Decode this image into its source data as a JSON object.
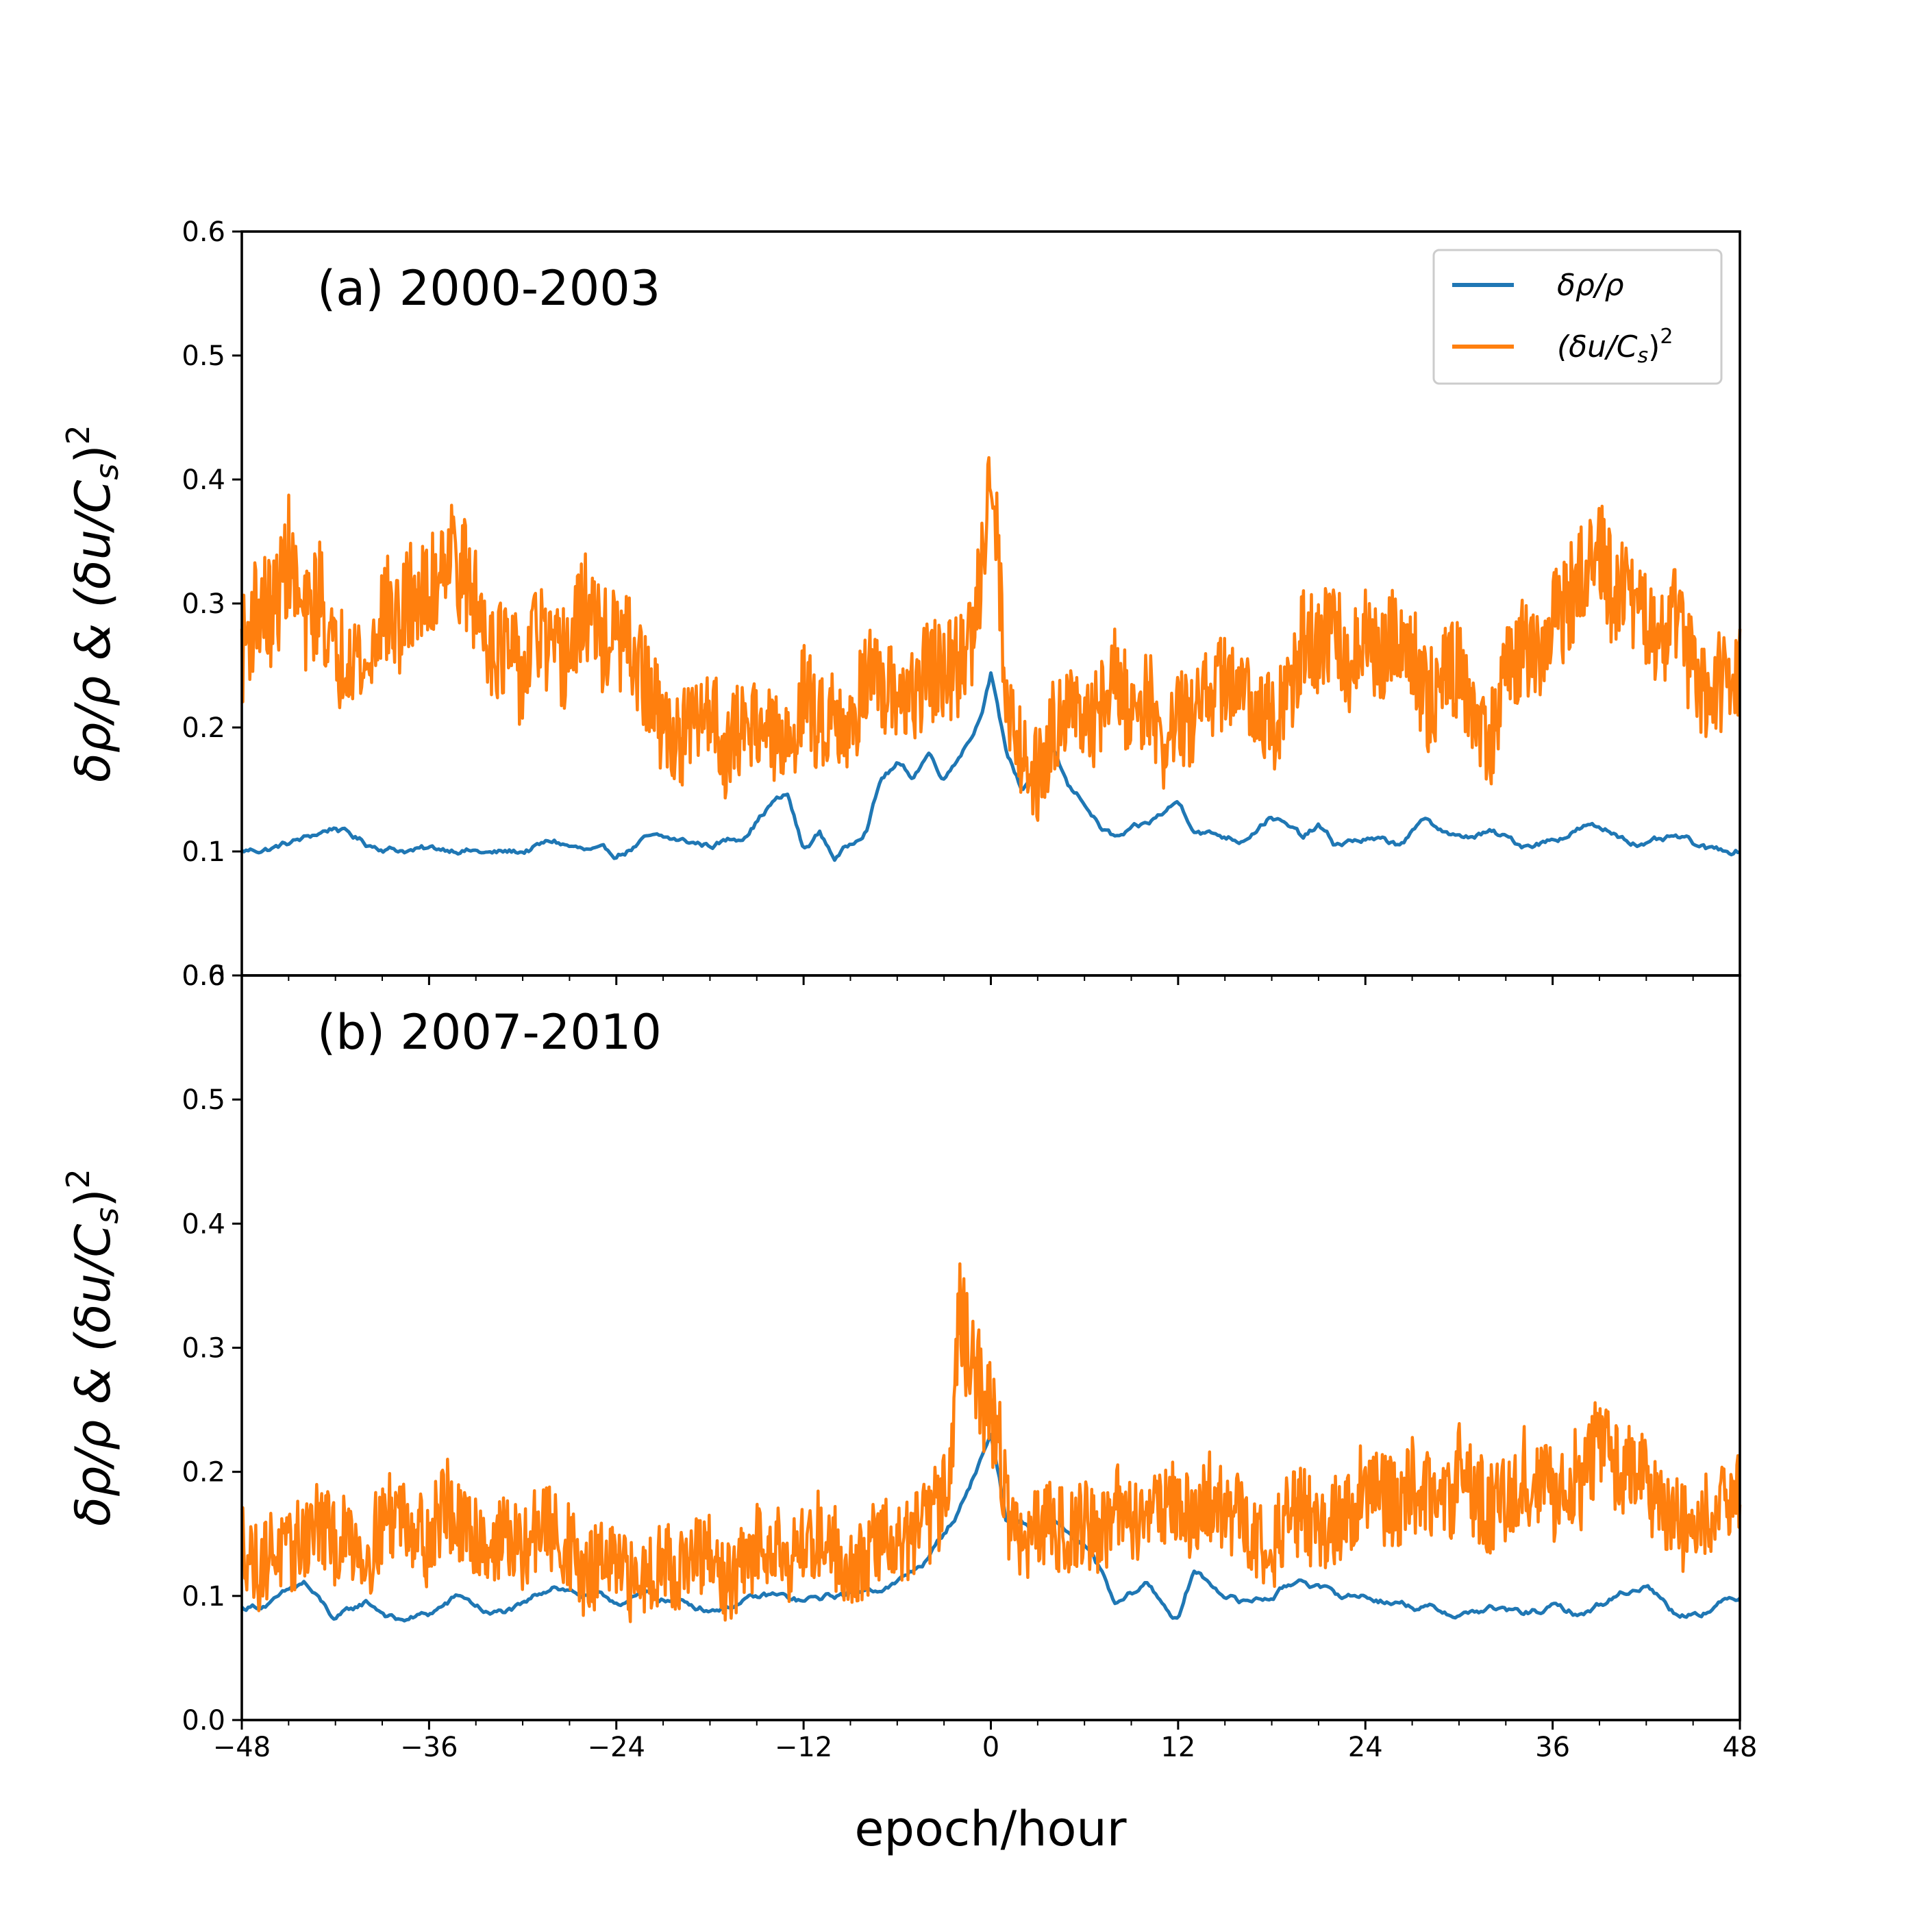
{
  "chart_data": {
    "type": "line",
    "xlabel": "epoch/hour",
    "xlim": [
      -48,
      48
    ],
    "xticks": [
      {
        "value": -48,
        "label": "−48"
      },
      {
        "value": -36,
        "label": "−36"
      },
      {
        "value": -24,
        "label": "−24"
      },
      {
        "value": -12,
        "label": "−12"
      },
      {
        "value": 0,
        "label": "0"
      },
      {
        "value": 12,
        "label": "12"
      },
      {
        "value": 24,
        "label": "24"
      },
      {
        "value": 36,
        "label": "36"
      },
      {
        "value": 48,
        "label": "48"
      }
    ],
    "legend": {
      "location": "upper right",
      "entries": [
        {
          "label": "δρ/ρ",
          "color": "#1f77b4"
        },
        {
          "label": "(δu/C",
          "sub": "s",
          "close": ")",
          "sup": "2",
          "color": "#ff7f0e"
        }
      ]
    },
    "colors": {
      "density": "#1f77b4",
      "velocity": "#ff7f0e"
    },
    "panels": [
      {
        "label": "(a) 2000-2003",
        "ylabel": "δρ/ρ & (δu/C",
        "ylabel_sub": "s",
        "ylabel_close": ")",
        "ylabel_sup": "2",
        "ylim": [
          0.0,
          0.6
        ],
        "yticks": [
          {
            "value": 0.0,
            "label": "0.0"
          },
          {
            "value": 0.1,
            "label": "0.1"
          },
          {
            "value": 0.2,
            "label": "0.2"
          },
          {
            "value": 0.3,
            "label": "0.3"
          },
          {
            "value": 0.4,
            "label": "0.4"
          },
          {
            "value": 0.5,
            "label": "0.5"
          },
          {
            "value": 0.6,
            "label": "0.6"
          }
        ],
        "series": [
          {
            "name": "δρ/ρ",
            "x": [
              -48,
              -46,
              -44,
              -42,
              -40,
              -38,
              -36,
              -34,
              -32,
              -30,
              -28,
              -26,
              -24,
              -22,
              -20,
              -18,
              -16,
              -14,
              -13,
              -12,
              -11,
              -10,
              -9,
              -8,
              -7,
              -6,
              -5,
              -4,
              -3,
              -2,
              -1,
              -0.5,
              0,
              0.5,
              1,
              2,
              3,
              4,
              5,
              6,
              7,
              8,
              10,
              12,
              13,
              14,
              16,
              18,
              20,
              21,
              22,
              24,
              26,
              28,
              30,
              32,
              34,
              36,
              38,
              40,
              42,
              44,
              46,
              48
            ],
            "y": [
              0.1,
              0.103,
              0.11,
              0.12,
              0.106,
              0.102,
              0.101,
              0.103,
              0.098,
              0.1,
              0.108,
              0.1,
              0.096,
              0.11,
              0.108,
              0.105,
              0.112,
              0.14,
              0.145,
              0.1,
              0.115,
              0.095,
              0.105,
              0.12,
              0.16,
              0.17,
              0.16,
              0.18,
              0.16,
              0.18,
              0.2,
              0.22,
              0.245,
              0.21,
              0.18,
              0.15,
              0.17,
              0.18,
              0.15,
              0.14,
              0.12,
              0.11,
              0.12,
              0.14,
              0.12,
              0.115,
              0.11,
              0.13,
              0.11,
              0.12,
              0.105,
              0.11,
              0.105,
              0.125,
              0.11,
              0.115,
              0.105,
              0.11,
              0.12,
              0.115,
              0.105,
              0.11,
              0.1,
              0.102
            ]
          },
          {
            "name": "(δu/C_s)²",
            "x": [
              -48,
              -47,
              -46,
              -45,
              -44,
              -43,
              -42,
              -41,
              -40,
              -39,
              -38,
              -37,
              -36,
              -35,
              -34,
              -33,
              -32,
              -31,
              -30,
              -29,
              -28,
              -27,
              -26,
              -25,
              -24,
              -23,
              -22,
              -21,
              -20,
              -19,
              -18,
              -17,
              -16,
              -15,
              -14,
              -13,
              -12,
              -11,
              -10,
              -9,
              -8,
              -7,
              -6,
              -5,
              -4,
              -3,
              -2,
              -1,
              -0.5,
              0,
              0.5,
              1,
              2,
              3,
              4,
              5,
              6,
              7,
              8,
              9,
              10,
              11,
              12,
              13,
              14,
              15,
              16,
              17,
              18,
              19,
              20,
              21,
              22,
              23,
              24,
              25,
              26,
              27,
              28,
              29,
              30,
              31,
              32,
              33,
              34,
              35,
              36,
              37,
              38,
              39,
              40,
              41,
              42,
              43,
              44,
              45,
              46,
              47,
              48
            ],
            "y": [
              0.26,
              0.3,
              0.29,
              0.34,
              0.28,
              0.31,
              0.25,
              0.27,
              0.24,
              0.3,
              0.28,
              0.31,
              0.3,
              0.35,
              0.33,
              0.3,
              0.27,
              0.26,
              0.24,
              0.28,
              0.25,
              0.26,
              0.3,
              0.27,
              0.27,
              0.26,
              0.23,
              0.2,
              0.19,
              0.2,
              0.22,
              0.18,
              0.2,
              0.21,
              0.19,
              0.18,
              0.23,
              0.2,
              0.22,
              0.19,
              0.25,
              0.22,
              0.23,
              0.22,
              0.25,
              0.24,
              0.25,
              0.28,
              0.35,
              0.43,
              0.33,
              0.22,
              0.18,
              0.16,
              0.2,
              0.23,
              0.19,
              0.22,
              0.24,
              0.21,
              0.23,
              0.18,
              0.21,
              0.2,
              0.23,
              0.24,
              0.22,
              0.23,
              0.2,
              0.22,
              0.27,
              0.26,
              0.28,
              0.25,
              0.27,
              0.25,
              0.28,
              0.26,
              0.22,
              0.24,
              0.25,
              0.21,
              0.19,
              0.24,
              0.26,
              0.25,
              0.29,
              0.3,
              0.32,
              0.34,
              0.3,
              0.31,
              0.28,
              0.27,
              0.29,
              0.24,
              0.23,
              0.24,
              0.25
            ]
          }
        ]
      },
      {
        "label": "(b) 2007-2010",
        "ylabel": "δρ/ρ & (δu/C",
        "ylabel_sub": "s",
        "ylabel_close": ")",
        "ylabel_sup": "2",
        "ylim": [
          0.0,
          0.6
        ],
        "yticks": [
          {
            "value": 0.0,
            "label": "0.0"
          },
          {
            "value": 0.1,
            "label": "0.1"
          },
          {
            "value": 0.2,
            "label": "0.2"
          },
          {
            "value": 0.3,
            "label": "0.3"
          },
          {
            "value": 0.4,
            "label": "0.4"
          },
          {
            "value": 0.5,
            "label": "0.5"
          },
          {
            "value": 0.6,
            "label": "0.6"
          }
        ],
        "series": [
          {
            "name": "δρ/ρ",
            "x": [
              -48,
              -46,
              -44,
              -42,
              -40,
              -38,
              -36,
              -34,
              -32,
              -30,
              -28,
              -26,
              -24,
              -22,
              -20,
              -18,
              -16,
              -14,
              -12,
              -10,
              -8,
              -6,
              -4,
              -3,
              -2,
              -1,
              -0.5,
              0,
              0.5,
              1,
              2,
              3,
              4,
              5,
              6,
              7,
              8,
              10,
              12,
              13,
              14,
              16,
              18,
              20,
              22,
              24,
              26,
              28,
              30,
              32,
              34,
              36,
              38,
              40,
              42,
              44,
              46,
              48
            ],
            "y": [
              0.09,
              0.095,
              0.11,
              0.08,
              0.095,
              0.08,
              0.085,
              0.1,
              0.085,
              0.09,
              0.11,
              0.1,
              0.095,
              0.1,
              0.095,
              0.09,
              0.095,
              0.1,
              0.095,
              0.1,
              0.105,
              0.11,
              0.13,
              0.15,
              0.17,
              0.2,
              0.215,
              0.23,
              0.2,
              0.16,
              0.16,
              0.15,
              0.16,
              0.15,
              0.14,
              0.12,
              0.09,
              0.11,
              0.08,
              0.12,
              0.11,
              0.095,
              0.1,
              0.115,
              0.1,
              0.1,
              0.095,
              0.09,
              0.085,
              0.09,
              0.085,
              0.09,
              0.085,
              0.1,
              0.11,
              0.085,
              0.09,
              0.1
            ]
          },
          {
            "name": "(δu/C_s)²",
            "x": [
              -48,
              -47,
              -46,
              -45,
              -44,
              -43,
              -42,
              -41,
              -40,
              -39,
              -38,
              -37,
              -36,
              -35,
              -34,
              -33,
              -32,
              -31,
              -30,
              -29,
              -28,
              -27,
              -26,
              -25,
              -24,
              -23,
              -22,
              -21,
              -20,
              -19,
              -18,
              -17,
              -16,
              -15,
              -14,
              -13,
              -12,
              -11,
              -10,
              -9,
              -8,
              -7,
              -6,
              -5,
              -4,
              -3,
              -2.5,
              -2,
              -1.5,
              -1,
              -0.5,
              0,
              0.5,
              1,
              2,
              3,
              4,
              5,
              6,
              7,
              8,
              9,
              10,
              11,
              12,
              13,
              14,
              15,
              16,
              17,
              18,
              19,
              20,
              21,
              22,
              23,
              24,
              25,
              26,
              27,
              28,
              29,
              30,
              31,
              32,
              33,
              34,
              35,
              36,
              37,
              38,
              39,
              40,
              41,
              42,
              43,
              44,
              45,
              46,
              47,
              48
            ],
            "y": [
              0.15,
              0.12,
              0.14,
              0.13,
              0.15,
              0.16,
              0.14,
              0.15,
              0.13,
              0.16,
              0.17,
              0.16,
              0.14,
              0.18,
              0.15,
              0.15,
              0.14,
              0.15,
              0.13,
              0.16,
              0.15,
              0.14,
              0.11,
              0.13,
              0.12,
              0.11,
              0.12,
              0.13,
              0.12,
              0.13,
              0.13,
              0.11,
              0.12,
              0.14,
              0.15,
              0.13,
              0.14,
              0.15,
              0.14,
              0.12,
              0.13,
              0.15,
              0.14,
              0.15,
              0.16,
              0.18,
              0.23,
              0.33,
              0.3,
              0.28,
              0.26,
              0.25,
              0.23,
              0.17,
              0.14,
              0.15,
              0.16,
              0.15,
              0.16,
              0.15,
              0.17,
              0.16,
              0.17,
              0.18,
              0.17,
              0.16,
              0.18,
              0.17,
              0.16,
              0.15,
              0.14,
              0.16,
              0.17,
              0.15,
              0.16,
              0.17,
              0.19,
              0.18,
              0.17,
              0.19,
              0.18,
              0.17,
              0.2,
              0.18,
              0.17,
              0.18,
              0.2,
              0.19,
              0.18,
              0.2,
              0.19,
              0.23,
              0.21,
              0.2,
              0.19,
              0.17,
              0.16,
              0.15,
              0.17,
              0.19,
              0.18
            ]
          }
        ]
      }
    ]
  }
}
